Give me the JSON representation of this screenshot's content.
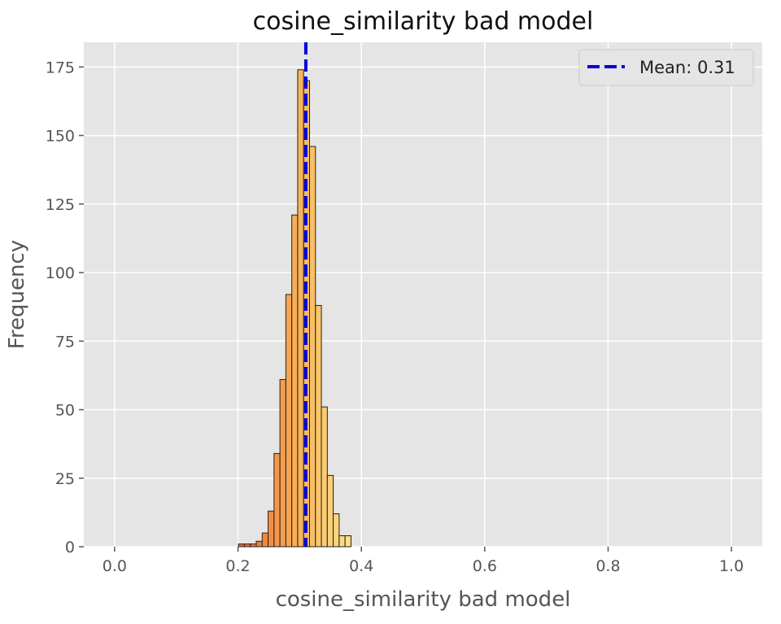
{
  "chart_data": {
    "type": "bar",
    "title": "cosine_similarity bad model",
    "xlabel": "cosine_similarity bad model",
    "ylabel": "Frequency",
    "xlim": [
      -0.05,
      1.05
    ],
    "ylim": [
      0,
      184
    ],
    "xticks": [
      0.0,
      0.2,
      0.4,
      0.6,
      0.8,
      1.0
    ],
    "xtick_labels": [
      "0.0",
      "0.2",
      "0.4",
      "0.6",
      "0.8",
      "1.0"
    ],
    "yticks": [
      0,
      25,
      50,
      75,
      100,
      125,
      150,
      175
    ],
    "ytick_labels": [
      "0",
      "25",
      "50",
      "75",
      "100",
      "125",
      "150",
      "175"
    ],
    "grid": true,
    "legend_position": "top-right",
    "bin_edges": [
      0.2008,
      0.2104,
      0.22,
      0.2296,
      0.2392,
      0.2488,
      0.2584,
      0.268,
      0.2776,
      0.2872,
      0.2968,
      0.3064,
      0.316,
      0.3256,
      0.3352,
      0.3448,
      0.3544,
      0.364,
      0.3736,
      0.3832,
      0.3928
    ],
    "values": [
      1,
      1,
      1,
      2,
      5,
      13,
      34,
      61,
      92,
      121,
      174,
      170,
      146,
      88,
      51,
      26,
      12,
      4,
      4,
      0
    ],
    "bar_colors": [
      "#e8683a",
      "#ea6f3b",
      "#ec773d",
      "#ee7f40",
      "#f08742",
      "#f28f45",
      "#f49748",
      "#f59e4c",
      "#f6a651",
      "#f7ad55",
      "#f8b45a",
      "#f9ba5f",
      "#fac064",
      "#fbc66a",
      "#fbcb70",
      "#fcd076",
      "#fcd57c",
      "#fdda82",
      "#fddf88",
      "#fee48e"
    ],
    "mean_line": {
      "value": 0.31,
      "label": "Mean: 0.31",
      "color": "#0000dd"
    },
    "colors": {
      "plot_background": "#e5e5e5",
      "grid": "#ffffff",
      "bar_edge": "#222222"
    }
  }
}
